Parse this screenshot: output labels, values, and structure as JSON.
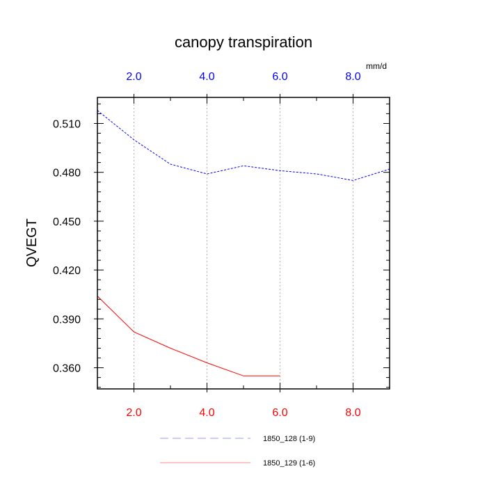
{
  "chart_data": {
    "type": "line",
    "title": "canopy transpiration",
    "ylabel": "QVEGT",
    "units": "mm/d",
    "xlim": [
      1,
      9
    ],
    "ylim": [
      0.347,
      0.526
    ],
    "grid": "vertical-dotted",
    "legend_position": "bottom",
    "x_ticks": [
      2,
      4,
      6,
      8
    ],
    "x_tick_labels": [
      "2.0",
      "4.0",
      "6.0",
      "8.0"
    ],
    "y_ticks": [
      0.36,
      0.39,
      0.42,
      0.45,
      0.48,
      0.51
    ],
    "y_tick_labels": [
      "0.360",
      "0.390",
      "0.420",
      "0.450",
      "0.480",
      "0.510"
    ],
    "series": [
      {
        "name": "1850_128 (1-9)",
        "color": "#0000ff",
        "dash": "dashed",
        "axis": "top",
        "x": [
          1,
          2,
          3,
          4,
          5,
          6,
          7,
          8,
          9
        ],
        "y": [
          0.518,
          0.5,
          0.485,
          0.479,
          0.484,
          0.481,
          0.479,
          0.475,
          0.482
        ]
      },
      {
        "name": "1850_129 (1-6)",
        "color": "#ff0000",
        "dash": "solid",
        "axis": "bottom",
        "x": [
          1,
          2,
          3,
          4,
          5,
          6
        ],
        "y": [
          0.404,
          0.382,
          0.372,
          0.363,
          0.355,
          0.355
        ]
      }
    ]
  }
}
